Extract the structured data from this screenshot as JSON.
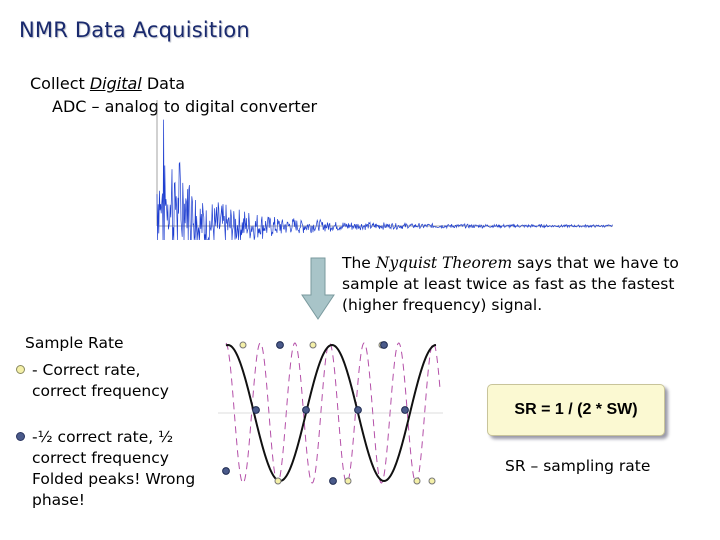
{
  "slide": {
    "title": "NMR Data Acquisition",
    "collect": {
      "prefix": "Collect ",
      "emphasis": "Digital",
      "suffix": " Data"
    },
    "adc": "ADC – analog to digital converter",
    "nyquist": {
      "prefix": "The ",
      "emphasis": "Nyquist Theorem",
      "suffix": " says that we have to sample at least twice as fast as the fastest (higher frequency) signal."
    },
    "sample_rate": {
      "heading": "Sample Rate",
      "correct": "- Correct rate, correct frequency",
      "half": "-½ correct rate, ½ correct frequency Folded peaks! Wrong phase!"
    },
    "formula": "SR = 1 / (2 * SW)",
    "sr_label": "SR – sampling rate"
  },
  "colors": {
    "title": "#1a2a6e",
    "fid": "#1f3fd0",
    "arrow_fill": "#a8c4c8",
    "wave_dash": "#b44fa8",
    "correct_dot": "#f4f0a8",
    "half_dot": "#4a5a8a",
    "formula_bg": "#fbf9d2"
  },
  "icons": [
    "down-arrow-icon",
    "correct-rate-bullet-icon",
    "half-rate-bullet-icon"
  ]
}
